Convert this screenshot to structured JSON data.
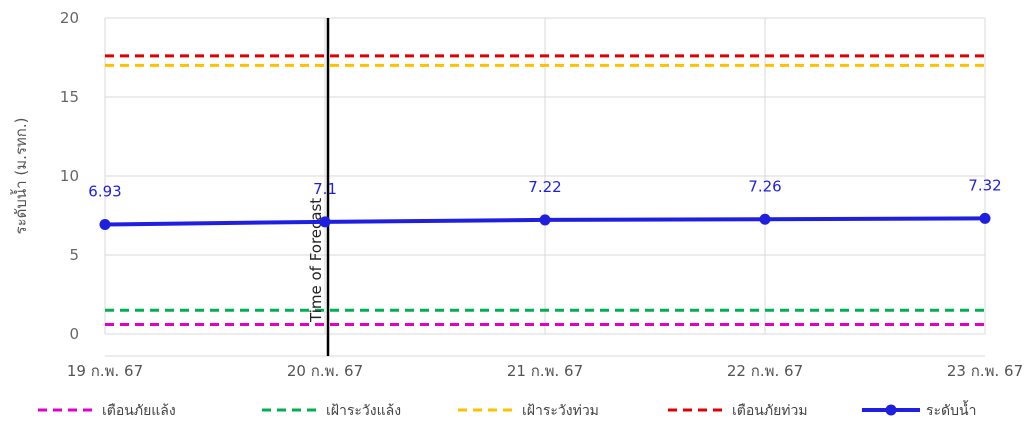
{
  "chart_data": {
    "type": "line",
    "title": "",
    "xlabel": "",
    "ylabel": "ระดับน้ำ (ม.รทก.)",
    "ylim": [
      0,
      20
    ],
    "y_ticks": [
      0,
      5,
      10,
      15,
      20
    ],
    "categories": [
      "19 ก.พ. 67",
      "20 ก.พ. 67",
      "21 ก.พ. 67",
      "22 ก.พ. 67",
      "23 ก.พ. 67"
    ],
    "grid": true,
    "legend_position": "bottom",
    "forecast_marker": {
      "category": "20 ก.พ. 67",
      "label": "Time of Forecast"
    },
    "series": [
      {
        "name": "เตือนภัยแล้ง",
        "kind": "threshold",
        "color": "#e000c8",
        "values": [
          0.6,
          0.6,
          0.6,
          0.6,
          0.6
        ]
      },
      {
        "name": "เฝ้าระวังแล้ง",
        "kind": "threshold",
        "color": "#00b050",
        "values": [
          1.5,
          1.5,
          1.5,
          1.5,
          1.5
        ]
      },
      {
        "name": "เฝ้าระวังท่วม",
        "kind": "threshold",
        "color": "#ffc000",
        "values": [
          17.0,
          17.0,
          17.0,
          17.0,
          17.0
        ]
      },
      {
        "name": "เตือนภัยท่วม",
        "kind": "threshold",
        "color": "#e00000",
        "values": [
          17.6,
          17.6,
          17.6,
          17.6,
          17.6
        ]
      },
      {
        "name": "ระดับน้ำ",
        "kind": "level",
        "color": "#1f1fe0",
        "values": [
          6.93,
          7.1,
          7.22,
          7.26,
          7.32
        ],
        "data_labels": [
          "6.93",
          "7.1",
          "7.22",
          "7.26",
          "7.32"
        ]
      }
    ]
  }
}
